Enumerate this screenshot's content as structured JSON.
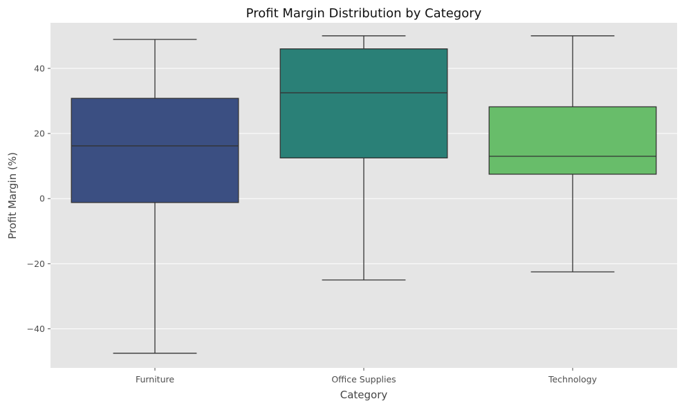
{
  "chart_data": {
    "type": "box",
    "title": "Profit Margin Distribution by Category",
    "xlabel": "Category",
    "ylabel": "Profit Margin (%)",
    "ylim": [
      -52,
      54
    ],
    "yticks": [
      -40,
      -20,
      0,
      20,
      40
    ],
    "grid": true,
    "background": "#e5e5e5",
    "categories": [
      "Furniture",
      "Office Supplies",
      "Technology"
    ],
    "boxes": [
      {
        "category": "Furniture",
        "whisker_low": -47.5,
        "q1": -1.2,
        "median": 16.2,
        "q3": 30.8,
        "whisker_high": 48.9,
        "color": "#3b4f82"
      },
      {
        "category": "Office Supplies",
        "whisker_low": -25.0,
        "q1": 12.5,
        "median": 32.5,
        "q3": 46.0,
        "whisker_high": 50.0,
        "color": "#2a8077"
      },
      {
        "category": "Technology",
        "whisker_low": -22.5,
        "q1": 7.5,
        "median": 13.0,
        "q3": 28.2,
        "whisker_high": 50.0,
        "color": "#68bd6a"
      }
    ]
  }
}
